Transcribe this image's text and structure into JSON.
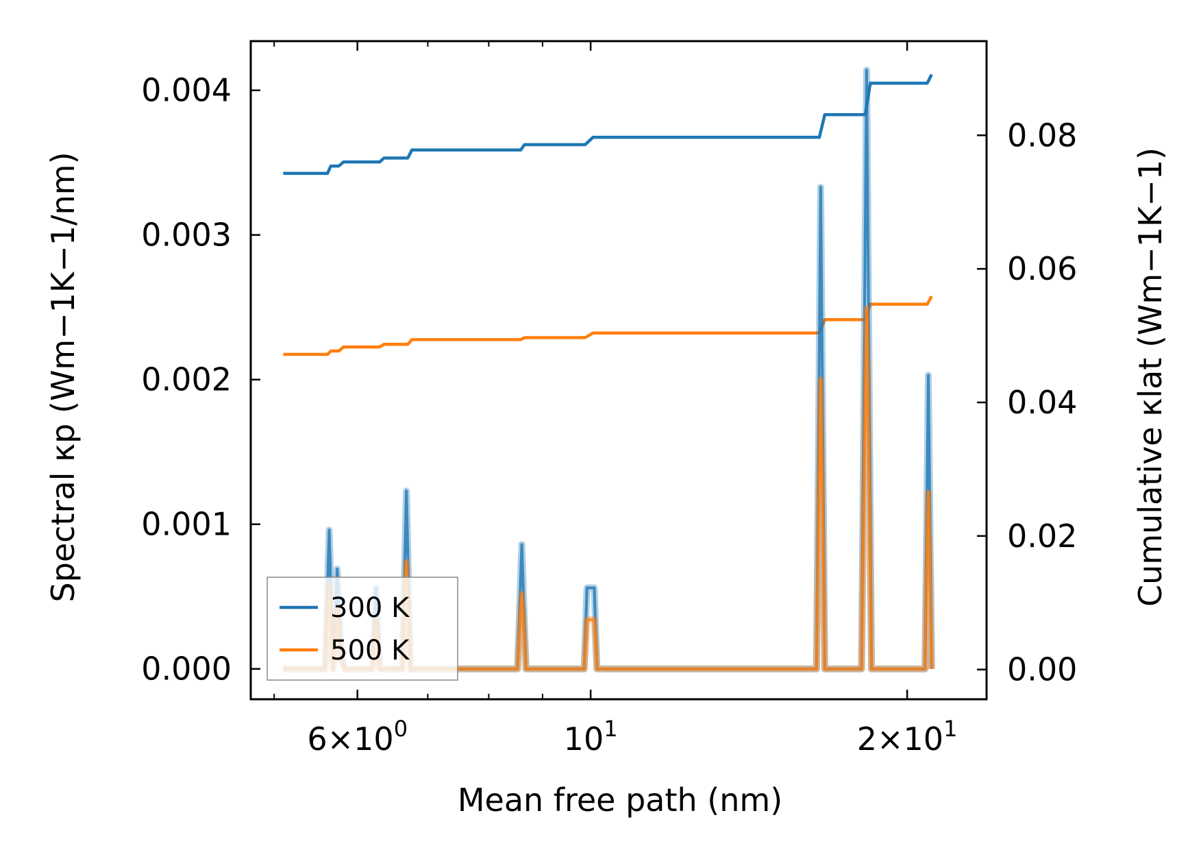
{
  "chart_data": {
    "type": "line",
    "xlabel": "Mean free path (nm)",
    "ylabel_left": "Spectral κp (Wm−1K−1/nm)",
    "ylabel_right": "Cumulative κlat (Wm−1K−1)",
    "xscale": "log",
    "xlim": [
      4.75,
      23.8
    ],
    "ylim_left": [
      -0.00021,
      0.00434
    ],
    "ylim_right": [
      -0.00445,
      0.0941
    ],
    "x_ticks": [
      {
        "value": 6,
        "mantissa": "6",
        "times": "×",
        "base": "10",
        "exp": "0"
      },
      {
        "value": 10,
        "mantissa": "",
        "times": "",
        "base": "10",
        "exp": "1"
      },
      {
        "value": 20,
        "mantissa": "2",
        "times": "×",
        "base": "10",
        "exp": "1"
      }
    ],
    "y_left_ticks": [
      "0.000",
      "0.001",
      "0.002",
      "0.003",
      "0.004"
    ],
    "y_right_ticks": [
      "0.00",
      "0.02",
      "0.04",
      "0.06",
      "0.08"
    ],
    "legend": {
      "location": "lower-left",
      "entries": [
        "300 K",
        "500 K"
      ]
    },
    "series": [
      {
        "name": "300 K",
        "kind": "cumulative",
        "axis": "right",
        "color": "#1f77b4",
        "x": [
          5.1,
          5.62,
          5.66,
          5.76,
          5.82,
          6.3,
          6.36,
          6.7,
          6.76,
          8.58,
          8.65,
          9.88,
          10.05,
          16.5,
          16.7,
          18.25,
          18.45,
          20.9,
          21.1
        ],
        "y": [
          0.0743,
          0.0743,
          0.0754,
          0.0754,
          0.076,
          0.076,
          0.0766,
          0.0766,
          0.0778,
          0.0778,
          0.0786,
          0.0786,
          0.0797,
          0.0797,
          0.0831,
          0.0831,
          0.0878,
          0.0878,
          0.0891
        ]
      },
      {
        "name": "500 K",
        "kind": "cumulative",
        "axis": "right",
        "color": "#ff7f0e",
        "x": [
          5.1,
          5.62,
          5.66,
          5.76,
          5.82,
          6.3,
          6.36,
          6.7,
          6.76,
          8.58,
          8.65,
          9.88,
          10.05,
          16.5,
          16.7,
          18.25,
          18.45,
          20.9,
          21.1
        ],
        "y": [
          0.0472,
          0.0472,
          0.0477,
          0.0477,
          0.0483,
          0.0483,
          0.0487,
          0.0487,
          0.0494,
          0.0494,
          0.0497,
          0.0497,
          0.0504,
          0.0504,
          0.0524,
          0.0524,
          0.0547,
          0.0547,
          0.0559
        ]
      },
      {
        "name": "300 K spectral",
        "kind": "spectral",
        "axis": "left",
        "color": "#1f77b4",
        "x": [
          5.1,
          5.59,
          5.64,
          5.69,
          5.74,
          5.79,
          5.84,
          6.2,
          6.25,
          6.3,
          6.62,
          6.68,
          6.74,
          8.52,
          8.6,
          8.68,
          9.86,
          9.92,
          10.08,
          10.14,
          16.4,
          16.55,
          16.7,
          18.1,
          18.3,
          18.5,
          20.8,
          20.95,
          21.1
        ],
        "y": [
          0,
          0,
          0.00096,
          0,
          0.00069,
          0.0001,
          0,
          0,
          0.00056,
          0,
          0,
          0.00123,
          0,
          0,
          0.00086,
          0,
          0,
          0.00056,
          0.00056,
          0,
          0,
          0.00333,
          0,
          0,
          0.00414,
          0,
          0,
          0.00203,
          0
        ]
      },
      {
        "name": "500 K spectral",
        "kind": "spectral",
        "axis": "left",
        "color": "#ff7f0e",
        "x": [
          5.1,
          5.59,
          5.64,
          5.69,
          5.74,
          5.79,
          5.84,
          6.2,
          6.25,
          6.3,
          6.62,
          6.68,
          6.74,
          8.52,
          8.6,
          8.68,
          9.86,
          9.92,
          10.08,
          10.14,
          16.4,
          16.55,
          16.7,
          18.1,
          18.3,
          18.5,
          20.8,
          20.95,
          21.1
        ],
        "y": [
          0,
          0,
          0.00058,
          0,
          0.00042,
          6e-05,
          0,
          0,
          0.00034,
          0,
          0,
          0.00074,
          0,
          0,
          0.00052,
          0,
          0,
          0.00034,
          0.00034,
          0,
          0,
          0.002,
          0,
          0,
          0.00249,
          0,
          0,
          0.00122,
          0
        ]
      }
    ]
  }
}
